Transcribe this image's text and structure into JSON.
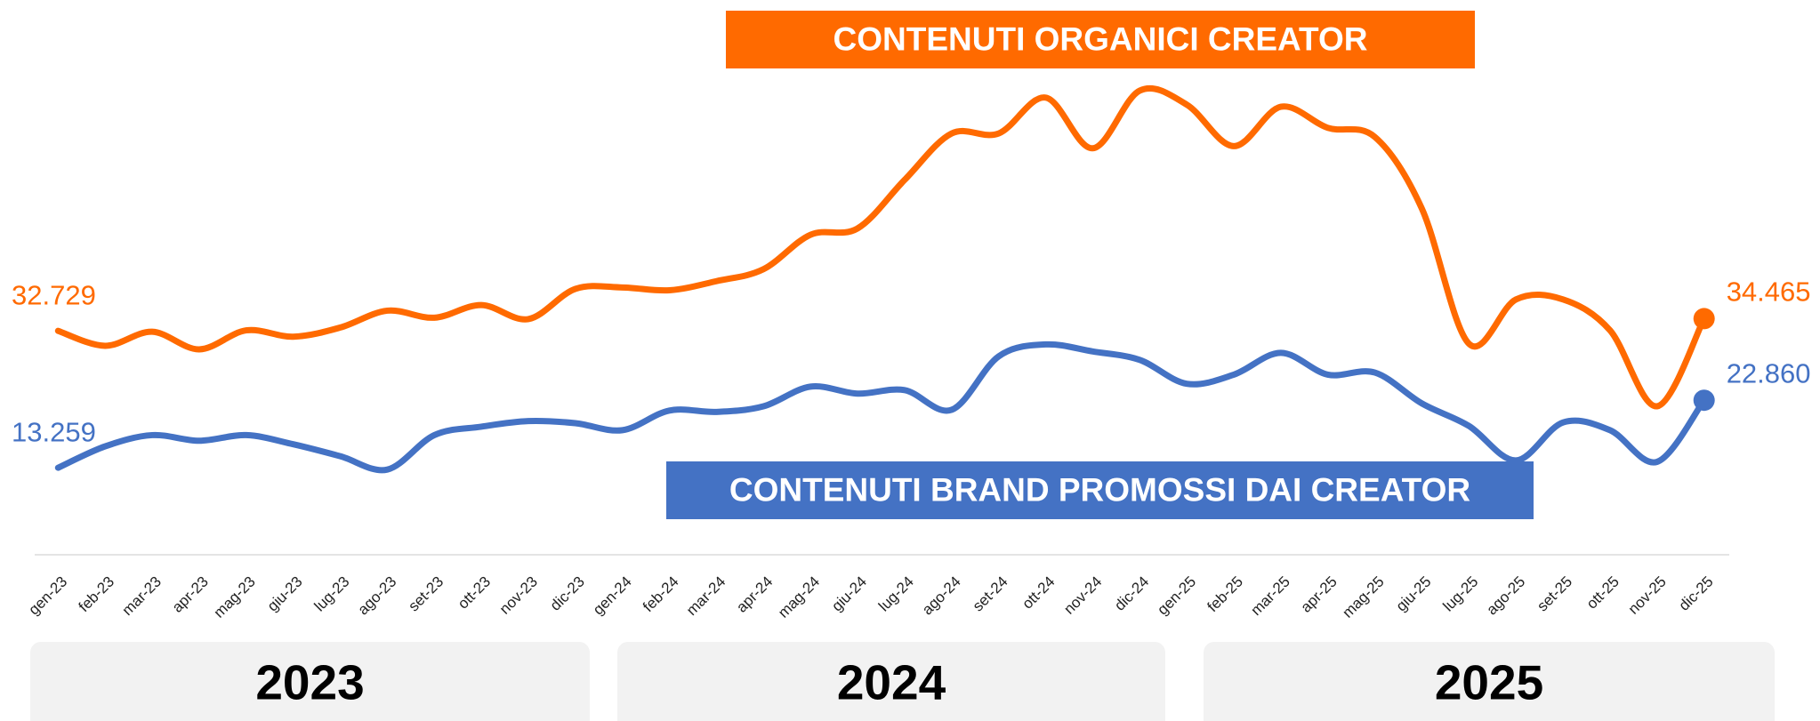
{
  "chart_data": {
    "type": "line",
    "titles": [
      "CONTENUTI ORGANICI CREATOR",
      "CONTENUTI BRAND PROMOSSI DAI CREATOR"
    ],
    "categories": [
      "gen-23",
      "feb-23",
      "mar-23",
      "apr-23",
      "mag-23",
      "giu-23",
      "lug-23",
      "ago-23",
      "set-23",
      "ott-23",
      "nov-23",
      "dic-23",
      "gen-24",
      "feb-24",
      "mar-24",
      "apr-24",
      "mag-24",
      "giu-24",
      "lug-24",
      "ago-24",
      "set-24",
      "ott-24",
      "nov-24",
      "dic-24",
      "gen-25",
      "feb-25",
      "mar-25",
      "apr-25",
      "mag-25",
      "giu-25",
      "lug-25",
      "ago-25",
      "set-25",
      "ott-25",
      "nov-25",
      "dic-25"
    ],
    "year_groups": [
      "2023",
      "2024",
      "2025"
    ],
    "series": [
      {
        "name": "CONTENUTI ORGANICI CREATOR",
        "color": "#ff6a00",
        "values": [
          32729,
          30600,
          32600,
          30100,
          32800,
          31900,
          33200,
          35600,
          34600,
          36400,
          34400,
          38700,
          38900,
          38500,
          39800,
          41500,
          46400,
          47300,
          54200,
          60800,
          60800,
          65900,
          58700,
          66900,
          64900,
          59000,
          64600,
          61600,
          60300,
          50100,
          30900,
          37200,
          37200,
          32800,
          22000,
          34465
        ],
        "value_labels": [
          "32.729",
          null,
          null,
          null,
          null,
          null,
          null,
          null,
          null,
          null,
          null,
          null,
          null,
          null,
          null,
          null,
          null,
          null,
          null,
          null,
          null,
          null,
          null,
          null,
          null,
          null,
          null,
          null,
          null,
          null,
          null,
          null,
          null,
          null,
          null,
          "34.465"
        ]
      },
      {
        "name": "CONTENUTI BRAND PROMOSSI DAI CREATOR",
        "color": "#4472c4",
        "values": [
          13259,
          16300,
          17900,
          17100,
          17900,
          16600,
          14900,
          13000,
          17900,
          19100,
          19900,
          19600,
          18600,
          21400,
          21200,
          22000,
          24800,
          23800,
          24300,
          21500,
          29100,
          30800,
          29800,
          28600,
          25200,
          26500,
          29600,
          26500,
          26800,
          22400,
          19200,
          14300,
          19700,
          18600,
          14100,
          22860
        ],
        "value_labels": [
          "13.259",
          null,
          null,
          null,
          null,
          null,
          null,
          null,
          null,
          null,
          null,
          null,
          null,
          null,
          null,
          null,
          null,
          null,
          null,
          null,
          null,
          null,
          null,
          null,
          null,
          null,
          null,
          null,
          null,
          null,
          null,
          null,
          null,
          null,
          null,
          "22.860"
        ]
      }
    ],
    "ylim": [
      0,
      80000
    ]
  }
}
